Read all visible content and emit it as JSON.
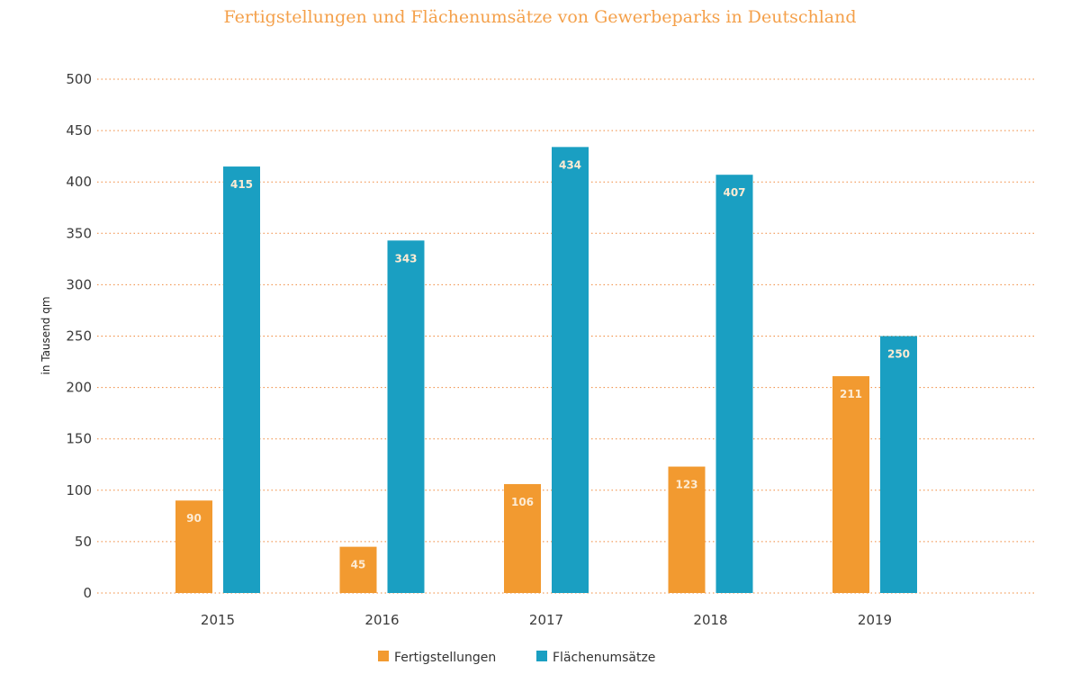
{
  "chart_data": {
    "type": "bar",
    "title": "Fertigstellungen und Flächenumsätze von Gewerbeparks in Deutschland",
    "xlabel": "",
    "ylabel": "in Tausend qm",
    "ylim": [
      0,
      500
    ],
    "yticks": [
      0,
      50,
      100,
      150,
      200,
      250,
      300,
      350,
      400,
      450,
      500
    ],
    "grid": true,
    "legend_position": "bottom",
    "categories": [
      "2015",
      "2016",
      "2017",
      "2018",
      "2019"
    ],
    "series": [
      {
        "name": "Fertigstellungen",
        "color": "#f29a30",
        "values": [
          90,
          45,
          106,
          123,
          211
        ]
      },
      {
        "name": "Flächenumsätze",
        "color": "#1a9fc2",
        "values": [
          415,
          343,
          434,
          407,
          250
        ]
      }
    ]
  }
}
